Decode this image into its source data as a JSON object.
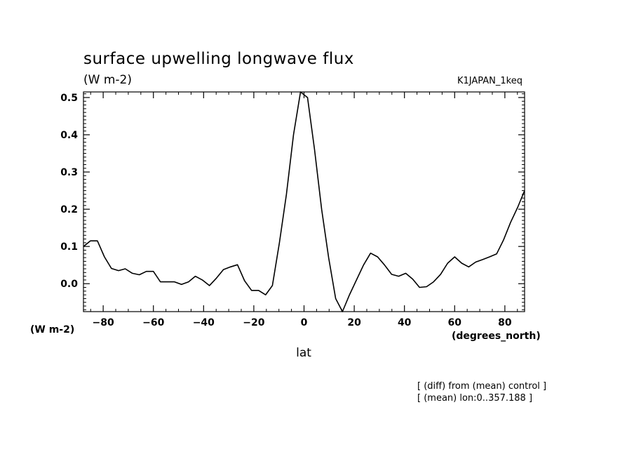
{
  "chart_data": {
    "type": "line",
    "title": "surface upwelling longwave flux",
    "units_label": "(W m-2)",
    "run_label": "K1JAPAN_1keq",
    "ylabel": "(W m-2)",
    "xlabel": "lat",
    "xunits": "(degrees_north)",
    "xlim": [
      -87.86,
      87.86
    ],
    "ylim": [
      -0.075,
      0.515
    ],
    "xticks": [
      -80,
      -60,
      -40,
      -20,
      0,
      20,
      40,
      60,
      80
    ],
    "xtick_labels": [
      "−80",
      "−60",
      "−40",
      "−20",
      "0",
      "20",
      "40",
      "60",
      "80"
    ],
    "yticks": [
      0.0,
      0.1,
      0.2,
      0.3,
      0.4,
      0.5
    ],
    "ytick_labels": [
      "0.0",
      "0.1",
      "0.2",
      "0.3",
      "0.4",
      "0.5"
    ],
    "grid": false,
    "color": "#000000",
    "series": [
      {
        "x": [
          -87.86,
          -85.1,
          -82.3,
          -79.5,
          -76.7,
          -73.9,
          -71.2,
          -68.4,
          -65.6,
          -62.8,
          -60.0,
          -57.2,
          -54.4,
          -51.6,
          -48.8,
          -46.0,
          -43.3,
          -40.5,
          -37.7,
          -34.9,
          -32.1,
          -29.3,
          -26.5,
          -23.7,
          -20.9,
          -18.1,
          -15.3,
          -12.6,
          -9.8,
          -7.0,
          -4.2,
          -1.4,
          1.4,
          4.2,
          7.0,
          9.8,
          12.6,
          15.3,
          18.1,
          20.9,
          23.7,
          26.5,
          29.3,
          32.1,
          34.9,
          37.7,
          40.5,
          43.3,
          46.0,
          48.8,
          51.6,
          54.4,
          57.2,
          60.0,
          62.8,
          65.6,
          68.4,
          71.2,
          73.9,
          76.7,
          79.5,
          82.3,
          85.1,
          87.86
        ],
        "y": [
          0.1,
          0.115,
          0.115,
          0.072,
          0.041,
          0.035,
          0.04,
          0.028,
          0.024,
          0.033,
          0.033,
          0.005,
          0.005,
          0.005,
          -0.002,
          0.005,
          0.02,
          0.01,
          -0.005,
          0.015,
          0.038,
          0.045,
          0.051,
          0.008,
          -0.018,
          -0.018,
          -0.03,
          -0.005,
          0.11,
          0.24,
          0.4,
          0.515,
          0.5,
          0.36,
          0.2,
          0.07,
          -0.04,
          -0.075,
          -0.03,
          0.01,
          0.05,
          0.082,
          0.072,
          0.05,
          0.025,
          0.02,
          0.028,
          0.012,
          -0.01,
          -0.008,
          0.005,
          0.025,
          0.055,
          0.072,
          0.055,
          0.045,
          0.058,
          0.065,
          0.072,
          0.08,
          0.118,
          0.165,
          0.205,
          0.25
        ]
      }
    ]
  },
  "notes": [
    "[ (diff) from (mean) control ]",
    "[ (mean) lon:0..357.188 ]"
  ]
}
